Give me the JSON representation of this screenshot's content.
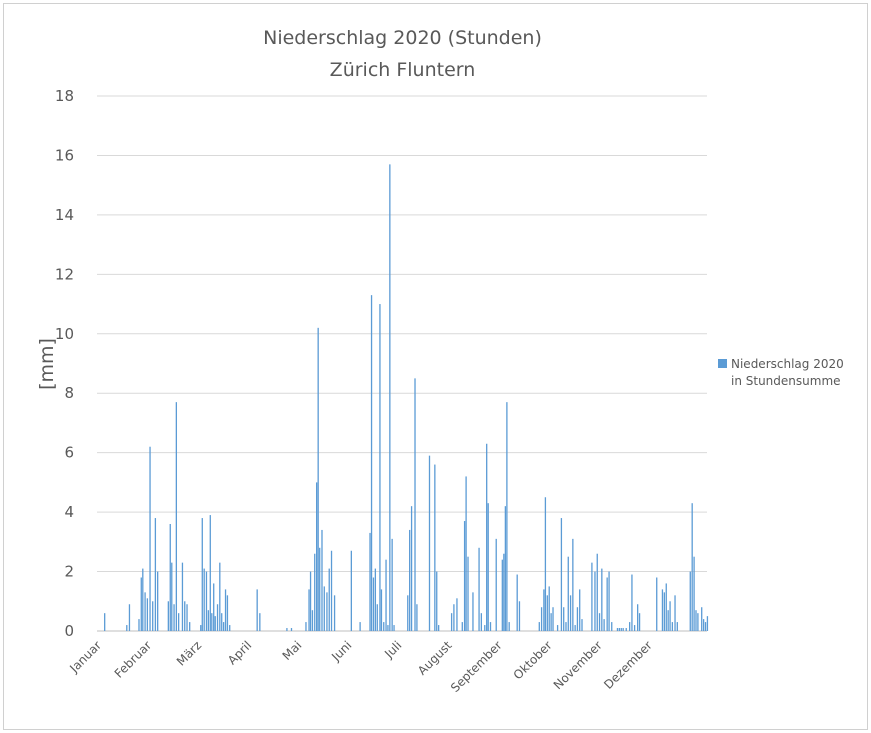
{
  "chart_data": {
    "type": "bar",
    "title": "Niederschlag 2020 (Stunden)",
    "subtitle": "Zürich Fluntern",
    "ylabel": "[mm]",
    "ylim": [
      0,
      18
    ],
    "yticks": [
      0,
      2,
      4,
      6,
      8,
      10,
      12,
      14,
      16,
      18
    ],
    "grid": true,
    "legend_position": "right",
    "color": "#5b9bd5",
    "x_tick_labels": [
      "Januar",
      "Februar",
      "März",
      "April",
      "Mai",
      "Juni",
      "Juli",
      "August",
      "September",
      "Oktober",
      "November",
      "Dezember"
    ],
    "series": [
      {
        "name": "Niederschlag 2020 in Stundensumme",
        "legend_lines": [
          "Niederschlag 2020",
          "in Stundensumme"
        ],
        "points": [
          [
            2.0,
            0.6
          ],
          [
            7.8,
            0.2
          ],
          [
            8.5,
            0.9
          ],
          [
            11.0,
            0.4
          ],
          [
            11.6,
            1.8
          ],
          [
            12.0,
            2.1
          ],
          [
            12.6,
            1.3
          ],
          [
            13.2,
            1.1
          ],
          [
            13.9,
            6.2
          ],
          [
            14.6,
            1.0
          ],
          [
            15.3,
            3.8
          ],
          [
            15.9,
            2.0
          ],
          [
            18.7,
            1.0
          ],
          [
            19.2,
            3.6
          ],
          [
            19.6,
            2.3
          ],
          [
            20.2,
            0.9
          ],
          [
            20.8,
            7.7
          ],
          [
            21.4,
            0.6
          ],
          [
            22.4,
            2.3
          ],
          [
            23.0,
            1.0
          ],
          [
            23.6,
            0.9
          ],
          [
            24.3,
            0.3
          ],
          [
            27.2,
            0.2
          ],
          [
            27.6,
            3.8
          ],
          [
            28.1,
            2.1
          ],
          [
            28.7,
            2.0
          ],
          [
            29.2,
            0.7
          ],
          [
            29.7,
            3.9
          ],
          [
            30.1,
            0.6
          ],
          [
            30.6,
            1.6
          ],
          [
            31.0,
            0.5
          ],
          [
            31.6,
            0.9
          ],
          [
            32.2,
            2.3
          ],
          [
            32.7,
            0.6
          ],
          [
            33.2,
            0.3
          ],
          [
            33.7,
            1.4
          ],
          [
            34.2,
            1.2
          ],
          [
            34.8,
            0.2
          ],
          [
            42.0,
            1.4
          ],
          [
            42.7,
            0.6
          ],
          [
            49.8,
            0.1
          ],
          [
            51.0,
            0.1
          ],
          [
            54.8,
            0.3
          ],
          [
            55.6,
            1.4
          ],
          [
            56.0,
            2.0
          ],
          [
            56.5,
            0.7
          ],
          [
            57.1,
            2.6
          ],
          [
            57.6,
            5.0
          ],
          [
            58.0,
            10.2
          ],
          [
            58.4,
            2.8
          ],
          [
            59.0,
            3.4
          ],
          [
            59.6,
            1.5
          ],
          [
            60.3,
            1.3
          ],
          [
            60.9,
            2.1
          ],
          [
            61.5,
            2.7
          ],
          [
            62.3,
            1.2
          ],
          [
            66.7,
            2.7
          ],
          [
            69.0,
            0.3
          ],
          [
            71.6,
            3.3
          ],
          [
            72.0,
            11.3
          ],
          [
            72.5,
            1.8
          ],
          [
            73.0,
            2.1
          ],
          [
            73.5,
            0.9
          ],
          [
            74.2,
            11.0
          ],
          [
            74.6,
            1.4
          ],
          [
            75.2,
            0.3
          ],
          [
            75.8,
            2.4
          ],
          [
            76.3,
            0.2
          ],
          [
            76.8,
            15.7
          ],
          [
            77.4,
            3.1
          ],
          [
            77.9,
            0.2
          ],
          [
            81.5,
            1.2
          ],
          [
            82.0,
            3.4
          ],
          [
            82.5,
            4.2
          ],
          [
            83.4,
            8.5
          ],
          [
            83.9,
            0.9
          ],
          [
            87.2,
            5.9
          ],
          [
            88.6,
            5.6
          ],
          [
            89.1,
            2.0
          ],
          [
            89.6,
            0.2
          ],
          [
            93.0,
            0.6
          ],
          [
            93.6,
            0.9
          ],
          [
            94.4,
            1.1
          ],
          [
            95.8,
            0.3
          ],
          [
            96.4,
            3.7
          ],
          [
            96.8,
            5.2
          ],
          [
            97.3,
            2.5
          ],
          [
            98.6,
            1.3
          ],
          [
            100.2,
            2.8
          ],
          [
            100.8,
            0.6
          ],
          [
            101.7,
            0.2
          ],
          [
            102.2,
            6.3
          ],
          [
            102.6,
            4.3
          ],
          [
            103.2,
            0.3
          ],
          [
            104.7,
            3.1
          ],
          [
            106.3,
            2.4
          ],
          [
            106.7,
            2.6
          ],
          [
            107.1,
            4.2
          ],
          [
            107.5,
            7.7
          ],
          [
            108.1,
            0.3
          ],
          [
            110.2,
            1.9
          ],
          [
            110.8,
            1.0
          ],
          [
            116.0,
            0.3
          ],
          [
            116.6,
            0.8
          ],
          [
            117.2,
            1.4
          ],
          [
            117.6,
            4.5
          ],
          [
            118.1,
            1.2
          ],
          [
            118.6,
            1.5
          ],
          [
            119.1,
            0.6
          ],
          [
            119.6,
            0.8
          ],
          [
            120.8,
            0.2
          ],
          [
            121.8,
            3.8
          ],
          [
            122.4,
            0.8
          ],
          [
            123.0,
            0.3
          ],
          [
            123.6,
            2.5
          ],
          [
            124.2,
            1.2
          ],
          [
            124.8,
            3.1
          ],
          [
            125.4,
            0.2
          ],
          [
            126.0,
            0.8
          ],
          [
            126.6,
            1.4
          ],
          [
            127.2,
            0.4
          ],
          [
            129.8,
            2.3
          ],
          [
            130.6,
            2.0
          ],
          [
            131.2,
            2.6
          ],
          [
            131.8,
            0.6
          ],
          [
            132.4,
            2.1
          ],
          [
            133.0,
            0.4
          ],
          [
            133.8,
            1.8
          ],
          [
            134.3,
            2.0
          ],
          [
            135.0,
            0.3
          ],
          [
            136.5,
            0.1
          ],
          [
            137.0,
            0.1
          ],
          [
            137.5,
            0.1
          ],
          [
            138.0,
            0.1
          ],
          [
            138.8,
            0.1
          ],
          [
            139.7,
            0.3
          ],
          [
            140.3,
            1.9
          ],
          [
            141.0,
            0.2
          ],
          [
            141.8,
            0.9
          ],
          [
            142.3,
            0.6
          ],
          [
            146.8,
            1.8
          ],
          [
            148.3,
            1.4
          ],
          [
            148.8,
            1.3
          ],
          [
            149.3,
            1.6
          ],
          [
            149.8,
            0.7
          ],
          [
            150.3,
            1.0
          ],
          [
            150.9,
            0.3
          ],
          [
            151.6,
            1.2
          ],
          [
            152.2,
            0.3
          ],
          [
            155.6,
            2.0
          ],
          [
            156.1,
            4.3
          ],
          [
            156.6,
            2.5
          ],
          [
            157.1,
            0.7
          ],
          [
            157.6,
            0.6
          ],
          [
            158.6,
            0.8
          ],
          [
            159.1,
            0.4
          ],
          [
            159.6,
            0.3
          ],
          [
            160.1,
            0.5
          ]
        ]
      }
    ]
  }
}
